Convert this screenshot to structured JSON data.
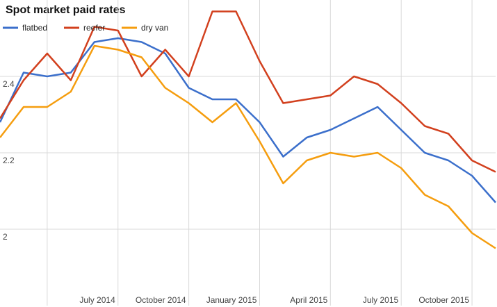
{
  "chart_data": {
    "type": "line",
    "title": "Spot market paid rates",
    "categories": [
      null,
      null,
      null,
      null,
      null,
      "July 2014",
      null,
      null,
      "October 2014",
      null,
      null,
      "January 2015",
      null,
      null,
      "April 2015",
      null,
      null,
      "July 2015",
      null,
      null,
      "October 2015",
      null
    ],
    "series": [
      {
        "name": "flatbed",
        "color": "#3b6fcb",
        "values": [
          2.28,
          2.41,
          2.4,
          2.41,
          2.49,
          2.5,
          2.49,
          2.46,
          2.37,
          2.34,
          2.34,
          2.28,
          2.19,
          2.24,
          2.26,
          2.29,
          2.32,
          2.26,
          2.2,
          2.18,
          2.14,
          2.07
        ]
      },
      {
        "name": "reefer",
        "color": "#d2401e",
        "values": [
          2.29,
          2.39,
          2.46,
          2.39,
          2.53,
          2.52,
          2.4,
          2.47,
          2.4,
          2.57,
          2.57,
          2.44,
          2.33,
          2.34,
          2.35,
          2.4,
          2.38,
          2.33,
          2.27,
          2.25,
          2.18,
          2.15
        ]
      },
      {
        "name": "dry van",
        "color": "#f59d0e",
        "values": [
          2.24,
          2.32,
          2.32,
          2.36,
          2.48,
          2.47,
          2.45,
          2.37,
          2.33,
          2.28,
          2.33,
          2.23,
          2.12,
          2.18,
          2.2,
          2.19,
          2.2,
          2.16,
          2.09,
          2.06,
          1.99,
          1.95
        ]
      }
    ],
    "ylim": [
      1.8,
      2.6
    ],
    "yticks": [
      2,
      2.2,
      2.4
    ],
    "grid": true
  }
}
